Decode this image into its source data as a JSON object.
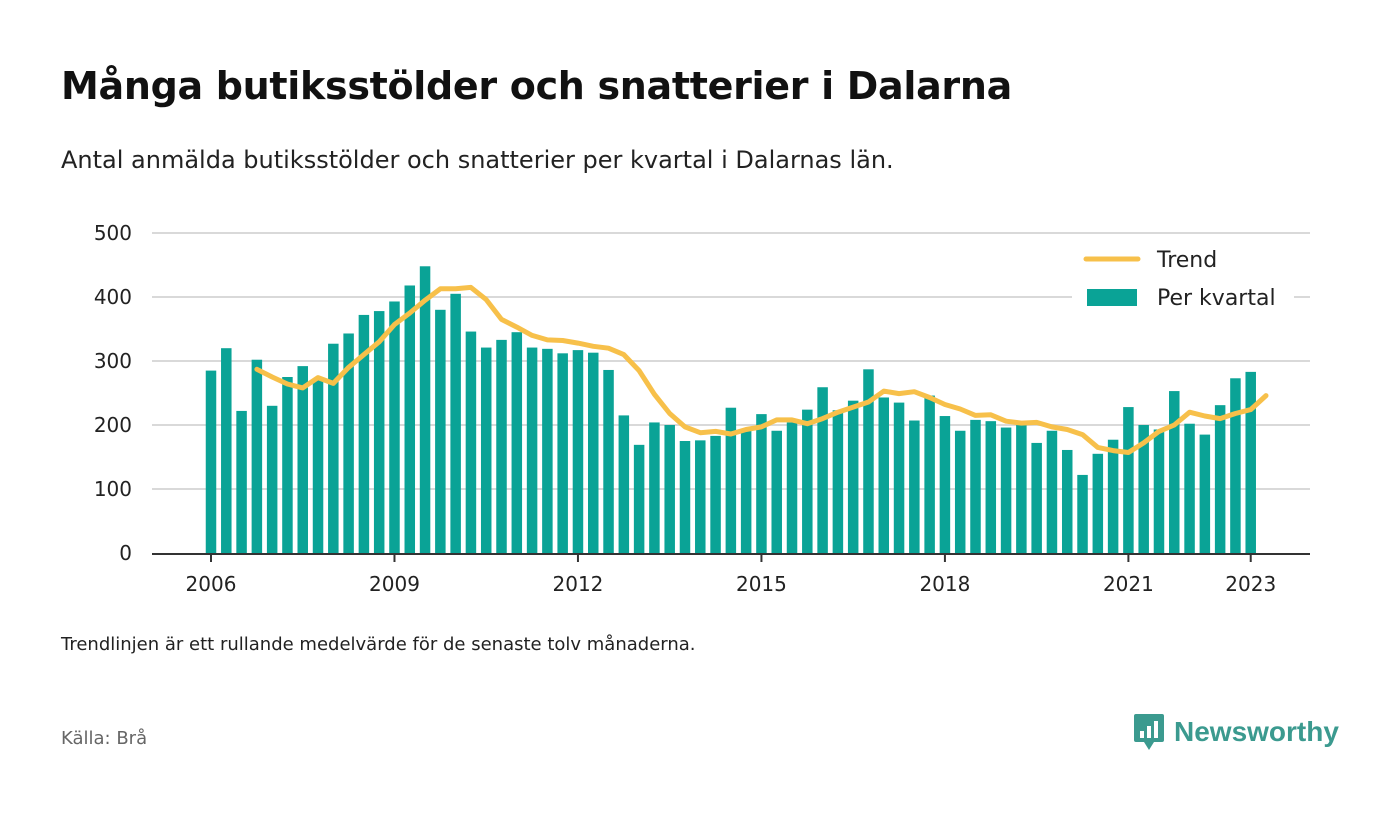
{
  "header": {
    "title": "Många butiksstölder och snatterier i Dalarna",
    "subtitle": "Antal anmälda butiksstölder och snatterier per kvartal i Dalarnas län."
  },
  "footer": {
    "note": "Trendlinjen är ett rullande medelvärde för de senaste tolv månaderna.",
    "source": "Källa: Brå",
    "brand": "Newsworthy"
  },
  "colors": {
    "bars": "#0aa396",
    "trend": "#f7c04a",
    "grid": "#d9d9d9",
    "axis": "#333333",
    "brand": "#3b9a8f"
  },
  "chart_data": {
    "type": "bar",
    "x_start_year": 2006,
    "x_ticks": [
      "2006",
      "2009",
      "2012",
      "2015",
      "2018",
      "2021",
      "2023"
    ],
    "y_ticks": [
      0,
      100,
      200,
      300,
      400,
      500
    ],
    "ylim": [
      0,
      500
    ],
    "grid": true,
    "legend_position": "top-right",
    "legend": [
      "Trend",
      "Per kvartal"
    ],
    "series": [
      {
        "name": "Per kvartal",
        "type": "bar",
        "values": [
          285,
          320,
          222,
          302,
          230,
          275,
          292,
          270,
          327,
          343,
          372,
          378,
          393,
          418,
          448,
          380,
          405,
          346,
          321,
          333,
          345,
          321,
          319,
          312,
          317,
          313,
          286,
          215,
          169,
          204,
          200,
          175,
          176,
          183,
          227,
          191,
          217,
          191,
          204,
          224,
          259,
          223,
          238,
          287,
          243,
          235,
          207,
          246,
          214,
          191,
          208,
          206,
          196,
          200,
          172,
          191,
          161,
          122,
          155,
          177,
          228,
          200,
          193,
          253,
          202,
          185,
          231,
          273,
          283
        ]
      },
      {
        "name": "Trend",
        "type": "line",
        "start_index": 3,
        "values": [
          287,
          275,
          264,
          258,
          274,
          265,
          290,
          310,
          330,
          357,
          375,
          395,
          413,
          413,
          415,
          396,
          365,
          353,
          340,
          333,
          332,
          328,
          323,
          320,
          310,
          285,
          248,
          218,
          197,
          188,
          190,
          186,
          193,
          197,
          208,
          208,
          202,
          210,
          220,
          228,
          236,
          253,
          249,
          252,
          243,
          232,
          225,
          215,
          216,
          206,
          203,
          204,
          197,
          193,
          185,
          165,
          160,
          157,
          172,
          190,
          200,
          220,
          214,
          210,
          218,
          224,
          246
        ]
      }
    ]
  }
}
